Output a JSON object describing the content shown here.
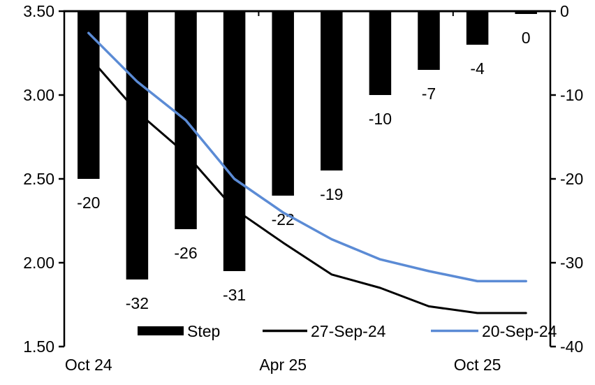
{
  "chart_data": {
    "type": "combo",
    "title": "",
    "num_slots": 10,
    "x_tick_labels": [
      {
        "slot": 0,
        "label": "Oct 24"
      },
      {
        "slot": 4,
        "label": "Apr 25"
      },
      {
        "slot": 8,
        "label": "Oct 25"
      }
    ],
    "bar_series": {
      "name": "Step",
      "axis": "right",
      "color": "#000000",
      "values": [
        -20,
        -32,
        -26,
        -31,
        -22,
        -19,
        -10,
        -7,
        -4,
        0
      ],
      "data_labels": [
        "-20",
        "-32",
        "-26",
        "-31",
        "-22",
        "-19",
        "-10",
        "-7",
        "-4",
        "0"
      ]
    },
    "line_series": [
      {
        "name": "27-Sep-24",
        "axis": "left",
        "color": "#000000",
        "stroke_width": 3,
        "values": [
          3.23,
          2.9,
          2.65,
          2.32,
          2.12,
          1.93,
          1.85,
          1.74,
          1.7,
          1.7
        ]
      },
      {
        "name": "20-Sep-24",
        "axis": "left",
        "color": "#5B8BD5",
        "stroke_width": 3.5,
        "values": [
          3.37,
          3.08,
          2.85,
          2.5,
          2.3,
          2.14,
          2.02,
          1.95,
          1.89,
          1.89
        ]
      }
    ],
    "left_axis": {
      "min": 1.5,
      "max": 3.5,
      "tick_labels": [
        "3.50",
        "3.00",
        "2.50",
        "2.00",
        "1.50"
      ]
    },
    "right_axis": {
      "min": -40,
      "max": 0,
      "tick_labels": [
        "0",
        "-10",
        "-20",
        "-30",
        "-40"
      ]
    },
    "legend": [
      {
        "label": "Step",
        "swatch": "bar",
        "color": "#000000"
      },
      {
        "label": "27-Sep-24",
        "swatch": "line",
        "color": "#000000"
      },
      {
        "label": "20-Sep-24",
        "swatch": "line",
        "color": "#5B8BD5"
      }
    ],
    "grid": false,
    "background": "#FFFFFF",
    "axis_color": "#000000"
  }
}
